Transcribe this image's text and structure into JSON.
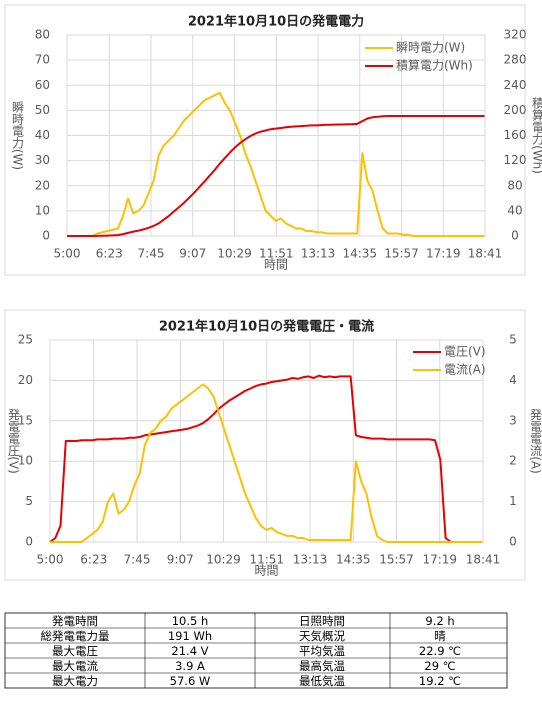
{
  "chart_data": [
    {
      "type": "line",
      "title": "2021年10月10日の発電電力",
      "xlabel": "時間",
      "ylabel": "瞬時電力(W)",
      "y2label": "積算電力(Wh)",
      "x": [
        300,
        310,
        320,
        330,
        340,
        350,
        360,
        370,
        380,
        390,
        400,
        410,
        420,
        430,
        440,
        450,
        460,
        470,
        480,
        490,
        500,
        510,
        520,
        530,
        540,
        550,
        560,
        570,
        580,
        590,
        600,
        610,
        620,
        630,
        640,
        650,
        660,
        670,
        680,
        690,
        700,
        710,
        720,
        730,
        740,
        750,
        760,
        770,
        780,
        790,
        800,
        810,
        820,
        830,
        840,
        850,
        860,
        870,
        880,
        890,
        900,
        910,
        920,
        930,
        940,
        950,
        960,
        970,
        980,
        990,
        1000,
        1010,
        1020,
        1030,
        1040,
        1050,
        1060,
        1070,
        1080,
        1090,
        1100,
        1110,
        1120
      ],
      "xlim": [
        300,
        1121
      ],
      "xticks": [
        {
          "value": 300,
          "label": "5:00"
        },
        {
          "value": 383,
          "label": "6:23"
        },
        {
          "value": 465,
          "label": "7:45"
        },
        {
          "value": 547,
          "label": "9:07"
        },
        {
          "value": 629,
          "label": "10:29"
        },
        {
          "value": 711,
          "label": "11:51"
        },
        {
          "value": 793,
          "label": "13:13"
        },
        {
          "value": 875,
          "label": "14:35"
        },
        {
          "value": 957,
          "label": "15:57"
        },
        {
          "value": 1039,
          "label": "17:19"
        },
        {
          "value": 1121,
          "label": "18:41"
        }
      ],
      "ylim": [
        0,
        80
      ],
      "yticks": [
        0,
        10,
        20,
        30,
        40,
        50,
        60,
        70,
        80
      ],
      "y2lim": [
        0,
        320
      ],
      "y2ticks": [
        0,
        40,
        80,
        120,
        160,
        200,
        240,
        280,
        320
      ],
      "grid": true,
      "legend": "upper right",
      "series": [
        {
          "name": "瞬時電力(W)",
          "color": "#ffc000",
          "axis": "y",
          "values": [
            0,
            0,
            0,
            0,
            0,
            0,
            1,
            1.5,
            2,
            2.5,
            3,
            8,
            15,
            9,
            10,
            12,
            17,
            22,
            32,
            36,
            38,
            40,
            43,
            46,
            48,
            50,
            52,
            54,
            55,
            56,
            57,
            53,
            50,
            45,
            40,
            33,
            28,
            22,
            16,
            10,
            8,
            6,
            7,
            5,
            4,
            3,
            3,
            2,
            2,
            1.5,
            1.5,
            1,
            1,
            1,
            1,
            1,
            1,
            1,
            33,
            22,
            18,
            10,
            3,
            1,
            1,
            1,
            0.5,
            0.5,
            0,
            0,
            0,
            0,
            0,
            0,
            0,
            0,
            0,
            0,
            0,
            0,
            0,
            0,
            0
          ]
        },
        {
          "name": "積算電力(Wh)",
          "color": "#e60000",
          "axis": "y2",
          "values": [
            0,
            0,
            0,
            0,
            0,
            0,
            0.1,
            0.3,
            0.6,
            1,
            1.5,
            3,
            5,
            7,
            8.5,
            10.5,
            13,
            16,
            20,
            26,
            32,
            39,
            46,
            53,
            61,
            69,
            78,
            87,
            96,
            105,
            115,
            124,
            133,
            141,
            148,
            154,
            159,
            163,
            166,
            168,
            170,
            171,
            172,
            173,
            174,
            174.5,
            175,
            175.5,
            176,
            176,
            176.5,
            177,
            177,
            177.5,
            177.5,
            178,
            178,
            178.5,
            183,
            187,
            189,
            190,
            190.5,
            191,
            191,
            191,
            191,
            191,
            191,
            191,
            191,
            191,
            191,
            191,
            191,
            191,
            191,
            191,
            191,
            191,
            191,
            191,
            191
          ]
        }
      ]
    },
    {
      "type": "line",
      "title": "2021年10月10日の発電電圧・電流",
      "xlabel": "時間",
      "ylabel": "発電電圧(V)",
      "y2label": "発電電流(A)",
      "x": [
        300,
        310,
        320,
        330,
        340,
        350,
        360,
        370,
        380,
        390,
        400,
        410,
        420,
        430,
        440,
        450,
        460,
        470,
        480,
        490,
        500,
        510,
        520,
        530,
        540,
        550,
        560,
        570,
        580,
        590,
        600,
        610,
        620,
        630,
        640,
        650,
        660,
        670,
        680,
        690,
        700,
        710,
        720,
        730,
        740,
        750,
        760,
        770,
        780,
        790,
        800,
        810,
        820,
        830,
        840,
        850,
        860,
        870,
        880,
        890,
        900,
        910,
        920,
        930,
        940,
        950,
        960,
        970,
        980,
        990,
        1000,
        1010,
        1020,
        1030,
        1040,
        1050,
        1060,
        1070,
        1080,
        1090,
        1100,
        1110,
        1120
      ],
      "xlim": [
        300,
        1121
      ],
      "xticks": [
        {
          "value": 300,
          "label": "5:00"
        },
        {
          "value": 383,
          "label": "6:23"
        },
        {
          "value": 465,
          "label": "7:45"
        },
        {
          "value": 547,
          "label": "9:07"
        },
        {
          "value": 629,
          "label": "10:29"
        },
        {
          "value": 711,
          "label": "11:51"
        },
        {
          "value": 793,
          "label": "13:13"
        },
        {
          "value": 875,
          "label": "14:35"
        },
        {
          "value": 957,
          "label": "15:57"
        },
        {
          "value": 1039,
          "label": "17:19"
        },
        {
          "value": 1121,
          "label": "18:41"
        }
      ],
      "ylim": [
        0,
        25
      ],
      "yticks": [
        0,
        5,
        10,
        15,
        20,
        25
      ],
      "y2lim": [
        0,
        5
      ],
      "y2ticks": [
        0,
        1,
        2,
        3,
        4,
        5
      ],
      "grid": true,
      "legend": "upper right",
      "series": [
        {
          "name": "電圧(V)",
          "color": "#e60000",
          "axis": "y",
          "values": [
            0,
            0.5,
            2,
            12.5,
            12.5,
            12.5,
            12.6,
            12.6,
            12.6,
            12.7,
            12.7,
            12.7,
            12.8,
            12.8,
            12.8,
            12.9,
            12.9,
            13,
            13.2,
            13.3,
            13.4,
            13.5,
            13.6,
            13.7,
            13.8,
            13.9,
            14,
            14.2,
            14.4,
            14.7,
            15.2,
            15.8,
            16.5,
            17,
            17.5,
            17.9,
            18.3,
            18.7,
            19,
            19.3,
            19.5,
            19.6,
            19.8,
            19.9,
            20,
            20.1,
            20.3,
            20.2,
            20.4,
            20.5,
            20.3,
            20.6,
            20.4,
            20.5,
            20.4,
            20.5,
            20.5,
            20.5,
            13.2,
            13,
            12.9,
            12.8,
            12.8,
            12.8,
            12.7,
            12.7,
            12.7,
            12.7,
            12.7,
            12.7,
            12.7,
            12.7,
            12.7,
            12.6,
            10.2,
            0.5,
            0,
            0,
            0,
            0,
            0,
            0,
            0
          ]
        },
        {
          "name": "電流(A)",
          "color": "#ffc000",
          "axis": "y2",
          "values": [
            0,
            0,
            0,
            0,
            0,
            0,
            0,
            0.1,
            0.2,
            0.3,
            0.5,
            1,
            1.2,
            0.7,
            0.8,
            1,
            1.4,
            1.7,
            2.4,
            2.7,
            2.8,
            3,
            3.1,
            3.3,
            3.4,
            3.5,
            3.6,
            3.7,
            3.8,
            3.9,
            3.8,
            3.6,
            3.2,
            2.8,
            2.4,
            2,
            1.6,
            1.2,
            0.9,
            0.6,
            0.4,
            0.3,
            0.35,
            0.25,
            0.2,
            0.15,
            0.15,
            0.1,
            0.1,
            0.05,
            0.05,
            0.05,
            0.05,
            0.05,
            0.05,
            0.05,
            0.05,
            0.05,
            2,
            1.5,
            1.2,
            0.6,
            0.15,
            0.05,
            0,
            0,
            0,
            0,
            0,
            0,
            0,
            0,
            0,
            0,
            0,
            0,
            0,
            0,
            0,
            0,
            0,
            0,
            0
          ]
        }
      ]
    }
  ],
  "table": {
    "rows": [
      [
        "発電時間",
        "10.5 h",
        "日照時間",
        "9.2 h"
      ],
      [
        "総発電電力量",
        "191 Wh",
        "天気概況",
        "晴"
      ],
      [
        "最大電圧",
        "21.4 V",
        "平均気温",
        "22.9 ℃"
      ],
      [
        "最大電流",
        "3.9 A",
        "最高気温",
        "29 ℃"
      ],
      [
        "最大電力",
        "57.6 W",
        "最低気温",
        "19.2 ℃"
      ]
    ]
  }
}
